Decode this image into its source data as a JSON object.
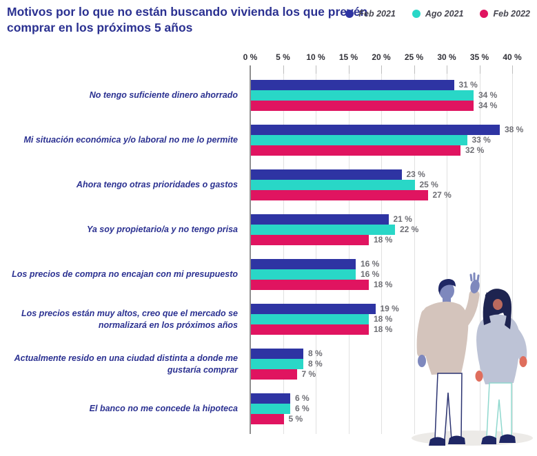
{
  "header": {
    "title": "Motivos por lo que no están buscando vivienda los que prevén comprar en los próximos 5 años"
  },
  "legend": {
    "items": [
      {
        "label": "Feb 2021",
        "color": "#2e34a3"
      },
      {
        "label": "Ago 2021",
        "color": "#29d7c7"
      },
      {
        "label": "Feb 2022",
        "color": "#e01460"
      }
    ]
  },
  "chart_data": {
    "type": "bar",
    "orientation": "horizontal",
    "title": "Motivos por lo que no están buscando vivienda los que prevén comprar en los próximos 5 años",
    "categories": [
      "No tengo suficiente dinero ahorrado",
      "Mi situación económica y/o laboral no me lo permite",
      "Ahora tengo otras prioridades o gastos",
      "Ya soy propietario/a y no tengo prisa",
      "Los precios de compra no encajan con mi presupuesto",
      "Los precios están muy altos, creo que el mercado se normalizará en los próximos años",
      "Actualmente resido en una ciudad distinta a donde me gustaría comprar",
      "El banco no me concede la hipoteca"
    ],
    "series": [
      {
        "name": "Feb 2021",
        "color": "#2e34a3",
        "values": [
          31,
          38,
          23,
          21,
          16,
          19,
          8,
          6
        ]
      },
      {
        "name": "Ago 2021",
        "color": "#29d7c7",
        "values": [
          34,
          33,
          25,
          22,
          16,
          18,
          8,
          6
        ]
      },
      {
        "name": "Feb 2022",
        "color": "#e01460",
        "values": [
          34,
          32,
          27,
          18,
          18,
          18,
          7,
          5
        ]
      }
    ],
    "x_axis": {
      "ticks": [
        0,
        5,
        10,
        15,
        20,
        25,
        30,
        35,
        40
      ],
      "tick_suffix": " %",
      "range": [
        0,
        40
      ]
    },
    "value_label_suffix": " %",
    "grid": true,
    "legend_position": "top-right"
  },
  "illustration": {
    "name": "two-people-waving"
  }
}
